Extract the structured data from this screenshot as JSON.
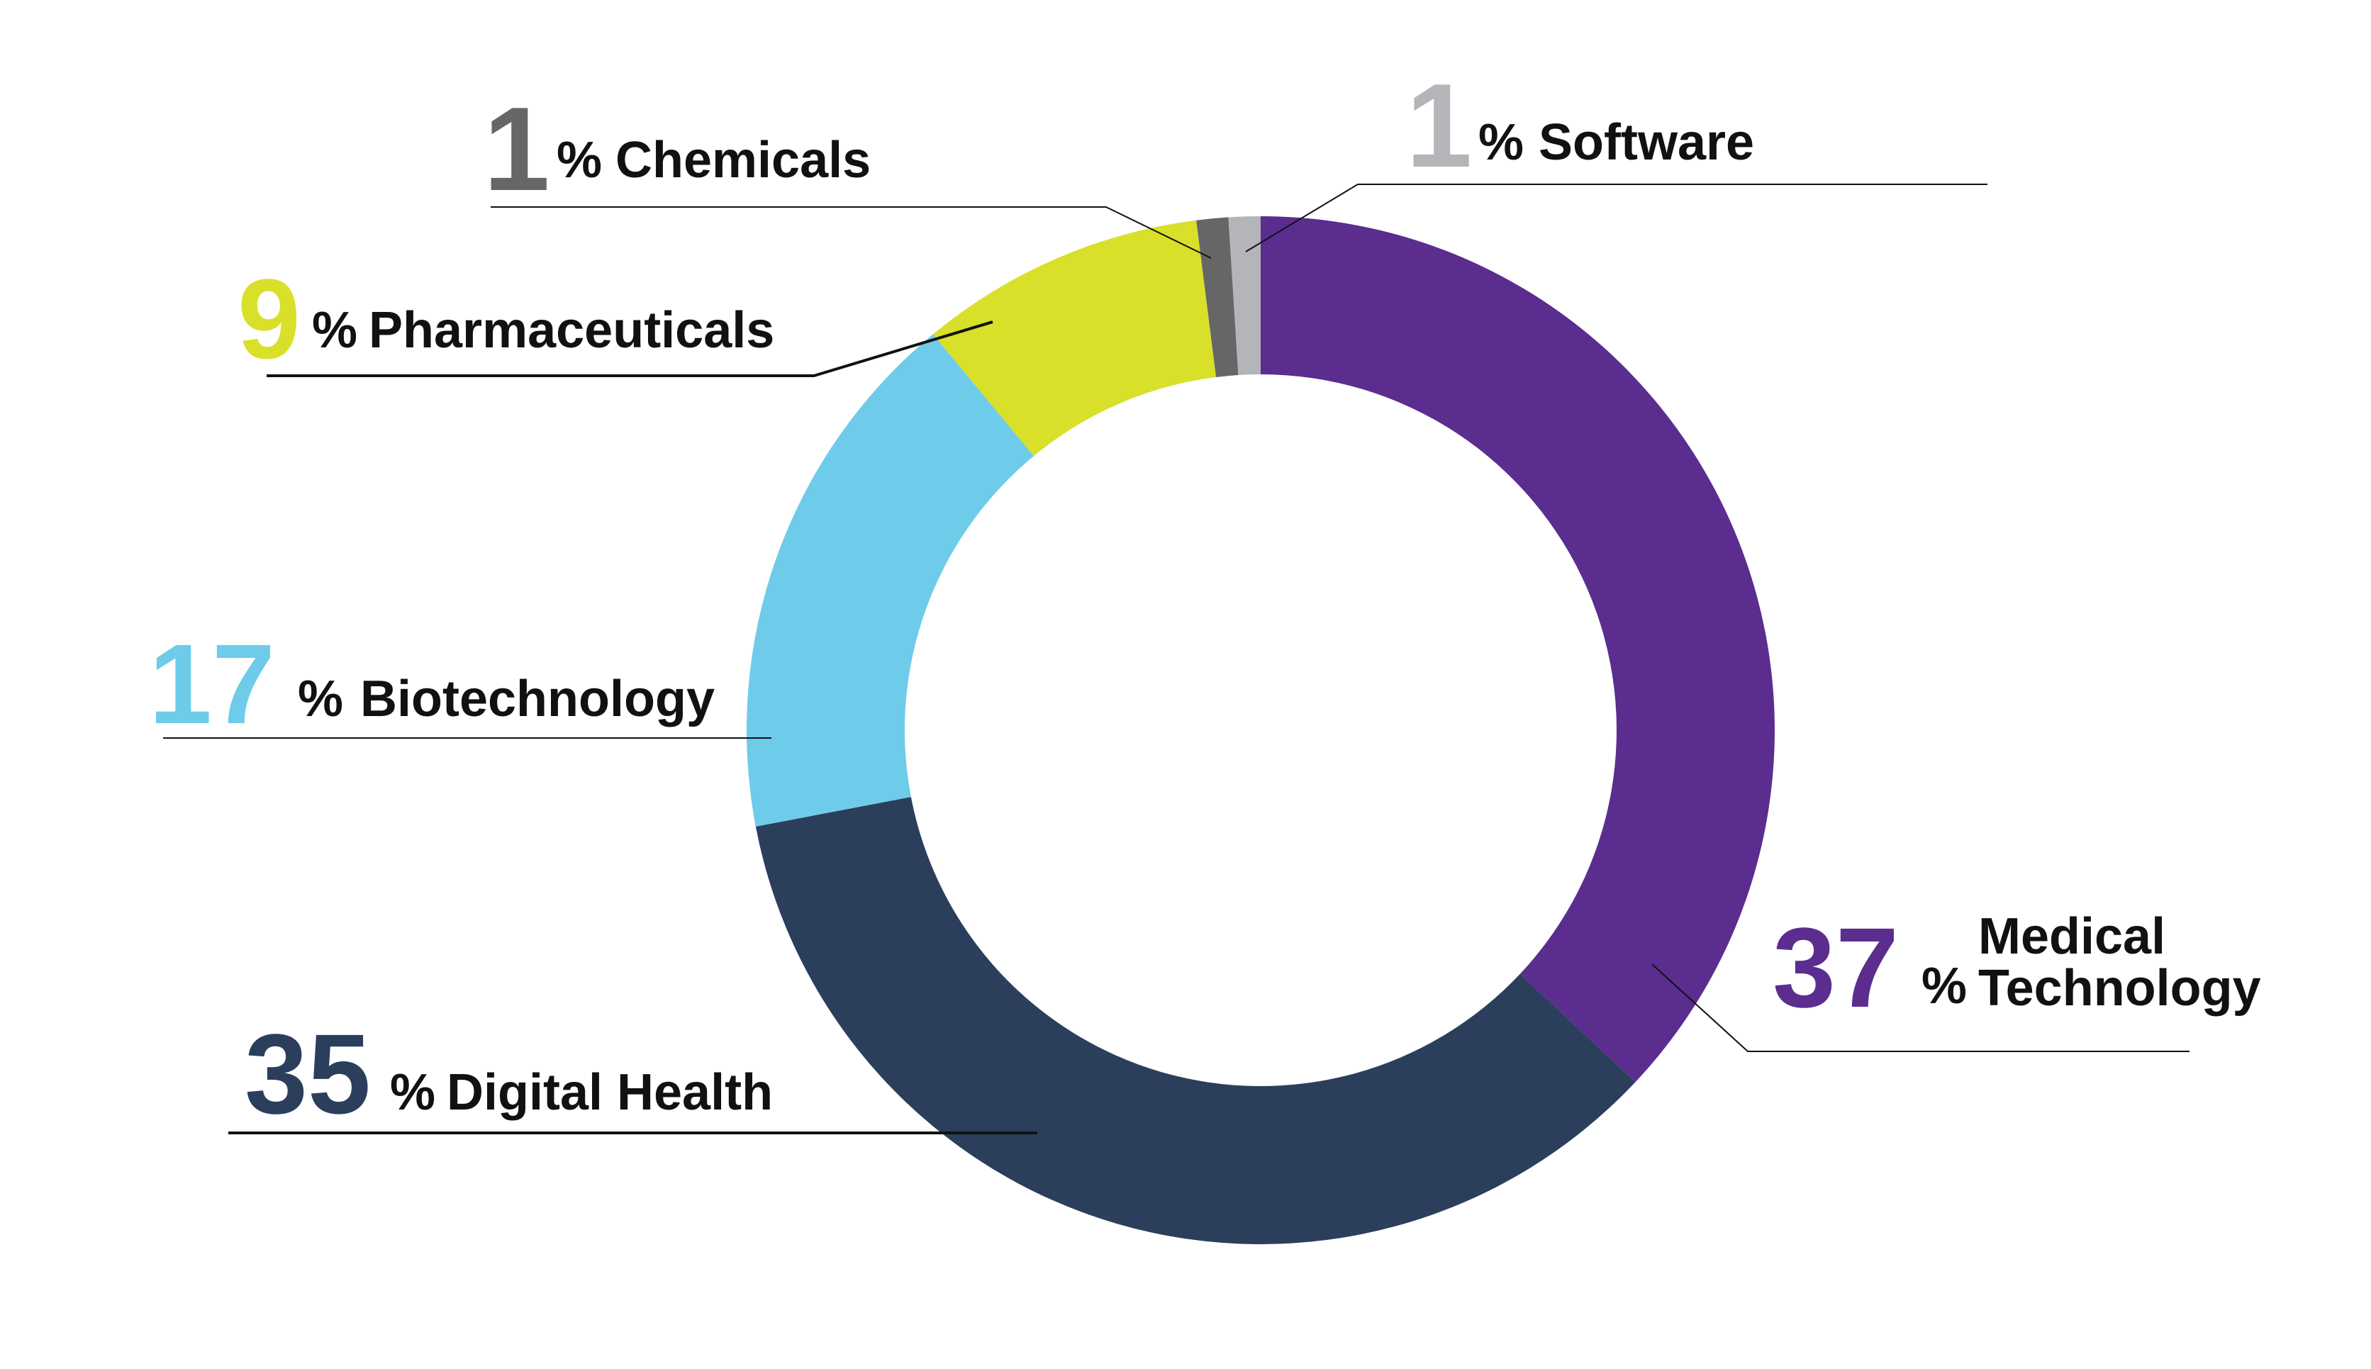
{
  "chart_data": {
    "type": "pie",
    "categories": [
      "Medical Technology",
      "Digital Health",
      "Biotechnology",
      "Pharmaceuticals",
      "Chemicals",
      "Software"
    ],
    "values": [
      37,
      35,
      17,
      9,
      1,
      1
    ],
    "colors": [
      "#5b2d8e",
      "#2b3f5c",
      "#6fcbea",
      "#d8e02a",
      "#666666",
      "#b3b5b9"
    ],
    "unit": "%",
    "labels": [
      {
        "value": "37",
        "unit": "%",
        "lines": [
          "Medical",
          "Technology"
        ]
      },
      {
        "value": "35",
        "unit": "%",
        "lines": [
          "Digital Health"
        ]
      },
      {
        "value": "17",
        "unit": "%",
        "lines": [
          "Biotechnology"
        ]
      },
      {
        "value": "9",
        "unit": "%",
        "lines": [
          "Pharmaceuticals"
        ]
      },
      {
        "value": "1",
        "unit": "%",
        "lines": [
          "Chemicals"
        ]
      },
      {
        "value": "1",
        "unit": "%",
        "lines": [
          "Software"
        ]
      }
    ]
  }
}
